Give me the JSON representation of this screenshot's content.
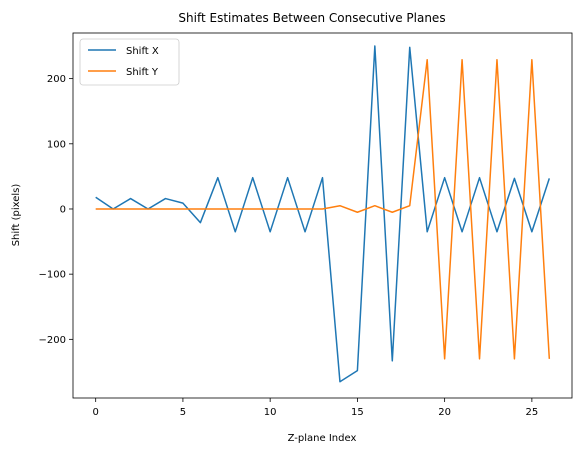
{
  "chart_data": {
    "type": "line",
    "title": "Shift Estimates Between Consecutive Planes",
    "xlabel": "Z-plane Index",
    "ylabel": "Shift (pixels)",
    "xlim": [
      -1.3,
      27.3
    ],
    "ylim": [
      -290,
      270
    ],
    "xticks": [
      0,
      5,
      10,
      15,
      20,
      25
    ],
    "yticks": [
      -200,
      -100,
      0,
      100,
      200
    ],
    "xtick_labels": [
      "0",
      "5",
      "10",
      "15",
      "20",
      "25"
    ],
    "ytick_labels": [
      "−200",
      "−100",
      "0",
      "100",
      "200"
    ],
    "grid": false,
    "legend_position": "top-left",
    "x": [
      0,
      1,
      2,
      3,
      4,
      5,
      6,
      7,
      8,
      9,
      10,
      11,
      12,
      13,
      14,
      15,
      16,
      17,
      18,
      19,
      20,
      21,
      22,
      23,
      24,
      25,
      26
    ],
    "series": [
      {
        "name": "Shift X",
        "color": "#1f77b4",
        "values": [
          18,
          0,
          16,
          0,
          16,
          9,
          -21,
          48,
          -35,
          48,
          -35,
          48,
          -35,
          48,
          -265,
          -248,
          250,
          -233,
          248,
          -35,
          48,
          -35,
          48,
          -35,
          47,
          -35,
          47
        ]
      },
      {
        "name": "Shift Y",
        "color": "#ff7f0e",
        "values": [
          0,
          0,
          0,
          0,
          0,
          0,
          0,
          0,
          0,
          0,
          0,
          0,
          0,
          0,
          5,
          -5,
          5,
          -5,
          5,
          229,
          -230,
          229,
          -230,
          229,
          -230,
          229,
          -230
        ]
      }
    ]
  }
}
